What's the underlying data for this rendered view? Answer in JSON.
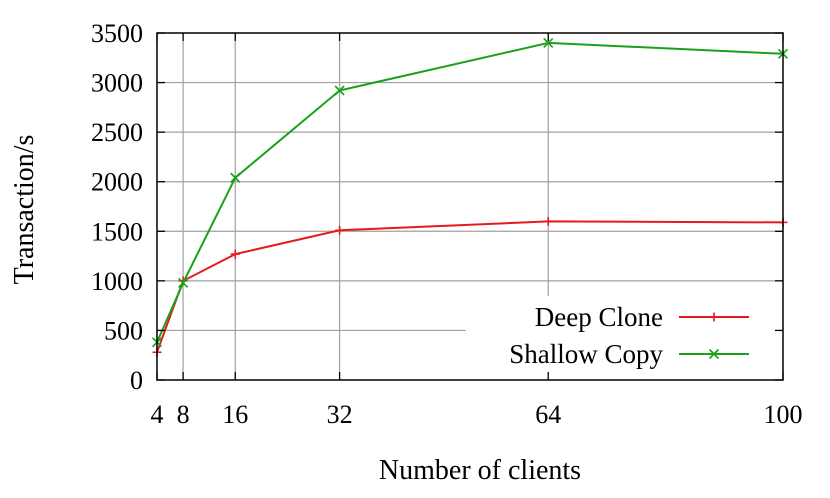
{
  "chart_data": {
    "type": "line",
    "xlabel": "Number of clients",
    "ylabel": "Transaction/s",
    "x": [
      4,
      8,
      16,
      32,
      64,
      100
    ],
    "xticks": [
      4,
      8,
      16,
      32,
      64,
      100
    ],
    "xlim": [
      4,
      100
    ],
    "ylim": [
      0,
      3500
    ],
    "yticks": [
      0,
      500,
      1000,
      1500,
      2000,
      2500,
      3000,
      3500
    ],
    "grid": true,
    "legend_position": "bottom-right",
    "series": [
      {
        "name": "Deep Clone",
        "color": "#e41a1c",
        "marker": "plus",
        "values": [
          280,
          1000,
          1270,
          1510,
          1600,
          1590
        ]
      },
      {
        "name": "Shallow Copy",
        "color": "#1aa11a",
        "marker": "cross",
        "values": [
          380,
          980,
          2040,
          2920,
          3400,
          3290
        ]
      }
    ]
  }
}
